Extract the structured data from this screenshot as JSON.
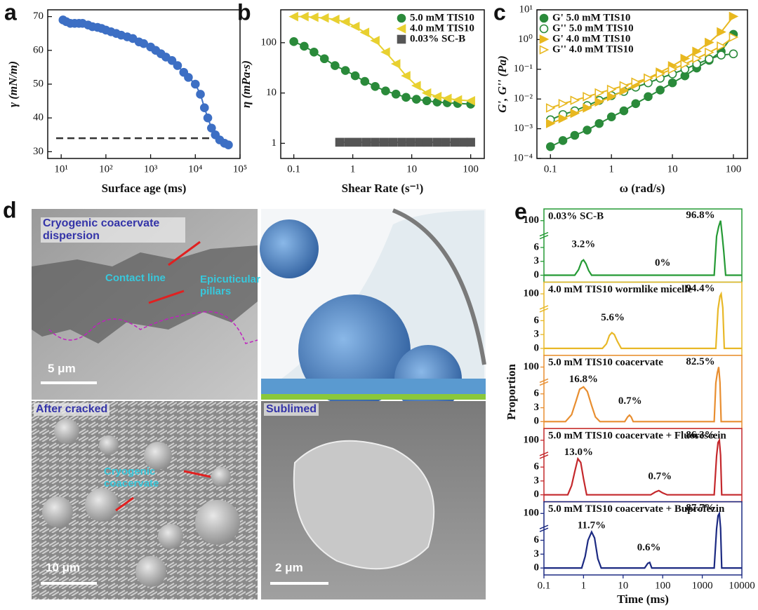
{
  "chart_data": [
    {
      "type": "scatter",
      "panel": "a",
      "xlabel": "Surface age (ms)",
      "ylabel": "γ (mN/m)",
      "xlog": true,
      "xlim": [
        5,
        100000
      ],
      "ylim": [
        28,
        72
      ],
      "xticks": [
        {
          "value": 10,
          "label": "10¹"
        },
        {
          "value": 100,
          "label": "10²"
        },
        {
          "value": 1000,
          "label": "10³"
        },
        {
          "value": 10000,
          "label": "10⁴"
        },
        {
          "value": 100000,
          "label": "10⁵"
        }
      ],
      "yticks": [
        30,
        40,
        50,
        60,
        70
      ],
      "hline": 34,
      "fit": true,
      "series": [
        {
          "color": "#3d6fc4",
          "marker": "circle",
          "x": [
            11,
            13,
            16,
            20,
            25,
            30,
            40,
            50,
            65,
            80,
            100,
            130,
            170,
            220,
            300,
            400,
            550,
            700,
            1000,
            1300,
            1700,
            2200,
            3000,
            4000,
            5500,
            7000,
            10000,
            13000,
            16000,
            19000,
            23000,
            28000,
            35000,
            45000,
            55000
          ],
          "values": [
            69,
            68.5,
            68,
            68,
            68,
            68,
            67.5,
            67,
            66.8,
            66.5,
            66,
            65.5,
            65,
            64.5,
            64,
            63.5,
            62.5,
            62,
            61,
            60,
            59,
            58,
            57,
            55.5,
            53.5,
            52,
            50,
            47,
            43,
            40,
            37,
            35,
            33.5,
            32.5,
            32
          ]
        }
      ]
    },
    {
      "type": "scatter",
      "panel": "b",
      "xlabel": "Shear Rate (s⁻¹)",
      "ylabel": "η (mPa·s)",
      "xlog": true,
      "ylog": true,
      "xlim": [
        0.06,
        170
      ],
      "ylim": [
        0.5,
        450
      ],
      "xticks": [
        0.1,
        1,
        10,
        100
      ],
      "yticks": [
        1,
        10,
        100
      ],
      "fit": true,
      "legend": "upper right",
      "series": [
        {
          "name": "5.0 mM TIS10",
          "color": "#2a8a3a",
          "marker": "circle",
          "x": [
            0.1,
            0.15,
            0.22,
            0.33,
            0.5,
            0.75,
            1.1,
            1.6,
            2.4,
            3.6,
            5.4,
            8,
            12,
            18,
            27,
            40,
            60,
            100
          ],
          "values": [
            105,
            85,
            65,
            48,
            35,
            28,
            22,
            17,
            13.5,
            11,
            9.5,
            8.2,
            7.5,
            7,
            6.6,
            6.4,
            6.2,
            6
          ]
        },
        {
          "name": "4.0 mM TIS10",
          "color": "#e8d030",
          "marker": "triangle-left",
          "x": [
            0.1,
            0.15,
            0.22,
            0.33,
            0.5,
            0.75,
            1.1,
            1.6,
            2.4,
            3.6,
            5.4,
            8,
            12,
            18,
            27,
            40,
            60,
            100
          ],
          "values": [
            330,
            330,
            320,
            310,
            290,
            260,
            210,
            160,
            110,
            65,
            38,
            22,
            14,
            10,
            8.5,
            7.8,
            7.3,
            7
          ]
        },
        {
          "name": "0.03% SC-B",
          "color": "#555555",
          "marker": "square",
          "x": [
            0.6,
            0.85,
            1.2,
            1.7,
            2.4,
            3.4,
            4.8,
            6.8,
            9.6,
            13.6,
            19,
            27,
            38,
            54,
            76,
            100
          ],
          "values": [
            1.05,
            1.05,
            1.05,
            1.05,
            1.05,
            1.05,
            1.05,
            1.05,
            1.05,
            1.05,
            1.05,
            1.05,
            1.05,
            1.05,
            1.05,
            1.05
          ]
        }
      ]
    },
    {
      "type": "scatter",
      "panel": "c",
      "xlabel": "ω (rad/s)",
      "ylabel": "G', G'' (Pa)",
      "xlog": true,
      "ylog": true,
      "xlim": [
        0.06,
        170
      ],
      "ylim": [
        0.0001,
        10
      ],
      "xticks": [
        0.1,
        1,
        10,
        100
      ],
      "yticks": [
        {
          "value": 0.0001,
          "label": "10⁻⁴"
        },
        {
          "value": 0.001,
          "label": "10⁻³"
        },
        {
          "value": 0.01,
          "label": "10⁻²"
        },
        {
          "value": 0.1,
          "label": "10⁻¹"
        },
        {
          "value": 1,
          "label": "10⁰"
        },
        {
          "value": 10,
          "label": "10¹"
        }
      ],
      "fit": true,
      "legend": "upper left",
      "series": [
        {
          "name": "G'  5.0 mM TIS10",
          "color": "#2a8a3a",
          "marker": "circle",
          "x": [
            0.1,
            0.16,
            0.25,
            0.4,
            0.63,
            1,
            1.6,
            2.5,
            4,
            6.3,
            10,
            16,
            25,
            40,
            63,
            100
          ],
          "values": [
            0.00025,
            0.0004,
            0.0006,
            0.0009,
            0.0015,
            0.0025,
            0.004,
            0.007,
            0.012,
            0.02,
            0.035,
            0.06,
            0.11,
            0.2,
            0.4,
            1.5
          ]
        },
        {
          "name": "G''  5.0 mM TIS10",
          "color": "#2a8a3a",
          "marker": "circle-open",
          "x": [
            0.1,
            0.16,
            0.25,
            0.4,
            0.63,
            1,
            1.6,
            2.5,
            4,
            6.3,
            10,
            16,
            25,
            40,
            63,
            100
          ],
          "values": [
            0.002,
            0.003,
            0.004,
            0.006,
            0.009,
            0.013,
            0.018,
            0.025,
            0.035,
            0.05,
            0.07,
            0.1,
            0.15,
            0.22,
            0.3,
            0.33
          ]
        },
        {
          "name": "G'  4.0 mM TIS10",
          "color": "#e8b820",
          "marker": "triangle-right",
          "x": [
            0.1,
            0.16,
            0.25,
            0.4,
            0.63,
            1,
            1.6,
            2.5,
            4,
            6.3,
            10,
            16,
            25,
            40,
            63,
            100
          ],
          "values": [
            0.0015,
            0.0022,
            0.0033,
            0.005,
            0.008,
            0.012,
            0.019,
            0.03,
            0.05,
            0.08,
            0.13,
            0.23,
            0.4,
            0.8,
            1.8,
            6
          ]
        },
        {
          "name": "G''  4.0 mM TIS10",
          "color": "#e8b820",
          "marker": "triangle-right-open",
          "x": [
            0.1,
            0.16,
            0.25,
            0.4,
            0.63,
            1,
            1.6,
            2.5,
            4,
            6.3,
            10,
            16,
            25,
            40,
            63,
            100
          ],
          "values": [
            0.005,
            0.007,
            0.009,
            0.012,
            0.016,
            0.021,
            0.028,
            0.037,
            0.05,
            0.07,
            0.1,
            0.15,
            0.23,
            0.37,
            0.6,
            1.2
          ]
        }
      ]
    },
    {
      "type": "line",
      "panel": "e",
      "xlabel": "Time (ms)",
      "ylabel": "Proportion",
      "xlog": true,
      "xlim": [
        0.1,
        10000
      ],
      "ylim": [
        -1.5,
        110
      ],
      "ybreak": [
        8,
        90
      ],
      "xticks": [
        0.1,
        1,
        10,
        100,
        1000,
        10000
      ],
      "yticks": [
        0,
        3,
        6,
        100
      ],
      "series": [
        {
          "name": "0.03% SC-B",
          "color": "#259a35",
          "x": [
            0.1,
            0.6,
            0.75,
            0.9,
            1.0,
            1.15,
            1.35,
            1.6,
            2000,
            2300,
            2600,
            2900,
            3200,
            3500,
            3900,
            10000
          ],
          "values": [
            0,
            0,
            1.2,
            3,
            3.3,
            2.5,
            1,
            0,
            0,
            35,
            95,
            100,
            40,
            5,
            0,
            0
          ],
          "peak_values": [
            3.2,
            0,
            96.8
          ],
          "peak_labels": [
            "3.2%",
            "0%",
            "96.8%"
          ]
        },
        {
          "name": "4.0 mM TIS10 wormlike micelle",
          "color": "#e8b828",
          "x": [
            0.1,
            3,
            3.8,
            4.5,
            5.2,
            6,
            7.2,
            9,
            2200,
            2500,
            2800,
            3000,
            3300,
            3600,
            10000
          ],
          "values": [
            0,
            0,
            1,
            2.8,
            3.4,
            3,
            1.5,
            0,
            0,
            40,
            98,
            100,
            60,
            0,
            0
          ],
          "peak_values": [
            5.6,
            94.4
          ],
          "peak_labels": [
            "5.6%",
            "94.4%"
          ]
        },
        {
          "name": "5.0 mM TIS10 coacervate",
          "color": "#e88e30",
          "x": [
            0.1,
            0.35,
            0.5,
            0.65,
            0.8,
            1,
            1.25,
            1.6,
            2,
            2.6,
            11,
            13,
            14.5,
            16,
            18,
            2000,
            2200,
            2400,
            2600,
            2800,
            3000,
            10000
          ],
          "values": [
            0,
            0,
            1.5,
            4.5,
            7,
            7.5,
            6.5,
            3.5,
            1,
            0,
            0,
            1,
            1.4,
            1,
            0,
            0,
            30,
            95,
            100,
            40,
            0,
            0
          ],
          "peak_values": [
            16.8,
            0.7,
            82.5
          ],
          "peak_labels": [
            "16.8%",
            "0.7%",
            "82.5%"
          ]
        },
        {
          "name": "5.0 mM TIS10 coacervate + Fluorescein",
          "color": "#c4282c",
          "x": [
            0.1,
            0.4,
            0.5,
            0.6,
            0.72,
            0.85,
            1,
            1.2,
            50,
            65,
            80,
            100,
            130,
            2000,
            2300,
            2500,
            2700,
            2900,
            3100,
            10000
          ],
          "values": [
            0,
            0,
            2,
            5,
            7.8,
            7,
            3.5,
            0,
            0,
            0.6,
            0.9,
            0.4,
            0,
            0,
            35,
            98,
            100,
            45,
            0,
            0
          ],
          "peak_values": [
            13.0,
            0.7,
            86.3
          ],
          "peak_labels": [
            "13.0%",
            "0.7%",
            "86.3%"
          ]
        },
        {
          "name": "5.0 mM TIS10  coacervate + Buprofezin",
          "color": "#1c2a82",
          "x": [
            0.1,
            0.9,
            1.1,
            1.3,
            1.6,
            1.9,
            2.3,
            2.8,
            35,
            42,
            47,
            53,
            2000,
            2300,
            2500,
            2700,
            2900,
            3100,
            10000
          ],
          "values": [
            0,
            0,
            2.5,
            6,
            7.8,
            6.5,
            2,
            0,
            0,
            1,
            1.2,
            0,
            0,
            40,
            98,
            100,
            50,
            0,
            0
          ],
          "peak_values": [
            11.7,
            0.6,
            87.7
          ],
          "peak_labels": [
            "11.7%",
            "0.6%",
            "87.7%"
          ]
        }
      ]
    }
  ],
  "micrographs": {
    "panel": "d",
    "tiles": [
      {
        "caption": "Cryogenic coacervate dispersion",
        "annotations": [
          "Contact line",
          "Epicuticular pillars"
        ],
        "scale_bar": "5 μm"
      },
      {
        "caption": "After cracked",
        "annotations": [
          "Cryogenic coacervate"
        ],
        "scale_bar": "10 μm"
      },
      {
        "caption": "Sublimed",
        "scale_bar": "2 μm"
      }
    ]
  }
}
